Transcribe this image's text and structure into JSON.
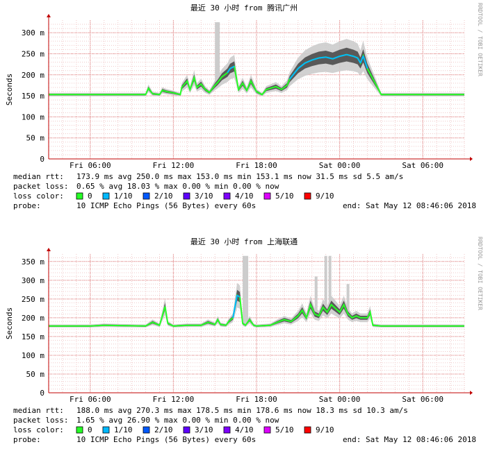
{
  "colors": {
    "grid_major": "#e08080",
    "grid_minor": "#f0c8c8",
    "axis": "#c00000",
    "smoke_light": "#cccccc",
    "smoke_dark": "#444444",
    "loss_0": "#26ff26",
    "loss_1": "#00b8ff",
    "loss_2": "#0059ff",
    "loss_3": "#5e00ff",
    "loss_4": "#7e00ff",
    "loss_5": "#dd00ff",
    "loss_9": "#ff0000"
  },
  "vertical_label": "RRDTOOL / TOBI OETIKER",
  "legend": {
    "loss_color_label": "loss color:",
    "probe_label": "probe:",
    "probe_text": "10 ICMP Echo Pings (56 Bytes) every 60s",
    "end_text": "end: Sat May 12 08:46:06 2018",
    "loss_items": [
      {
        "label": "0",
        "color": "#26ff26"
      },
      {
        "label": "1/10",
        "color": "#00b8ff"
      },
      {
        "label": "2/10",
        "color": "#0059ff"
      },
      {
        "label": "3/10",
        "color": "#5e00ff"
      },
      {
        "label": "4/10",
        "color": "#7e00ff"
      },
      {
        "label": "5/10",
        "color": "#dd00ff"
      },
      {
        "label": "9/10",
        "color": "#ff0000"
      }
    ]
  },
  "chart_data": [
    {
      "type": "line",
      "title": "最近 30 小时 from 腾讯广州",
      "ylabel": "Seconds",
      "xlabel": "",
      "ylim": [
        0,
        0.33
      ],
      "y_ticks": [
        0,
        0.05,
        0.1,
        0.15,
        0.2,
        0.25,
        0.3
      ],
      "y_tick_labels": [
        "0",
        "50 m",
        "100 m",
        "150 m",
        "200 m",
        "250 m",
        "300 m"
      ],
      "x_range_hours": [
        0,
        30
      ],
      "x_ticks_hours": [
        3,
        9,
        15,
        21,
        27
      ],
      "x_tick_labels": [
        "Fri 06:00",
        "Fri 12:00",
        "Fri 18:00",
        "Sat 00:00",
        "Sat 06:00"
      ],
      "grid": true,
      "series": [
        {
          "x": [
            0,
            3,
            6,
            7,
            7.2,
            7.5,
            8,
            8.2,
            8.5,
            9,
            9.5,
            9.6,
            10,
            10.2,
            10.5,
            10.7,
            11,
            11.3,
            11.6,
            12,
            12.2,
            12.5,
            12.9,
            13.1,
            13.4,
            13.7,
            14,
            14.3,
            14.6,
            15,
            15.4,
            15.7,
            16,
            16.4,
            16.8,
            17.2,
            17.4,
            18,
            18.5,
            19,
            19.5,
            20,
            20.5,
            21,
            21.5,
            22,
            22.3,
            22.5,
            22.7,
            23,
            24,
            27,
            30
          ],
          "y": [
            0.153,
            0.153,
            0.153,
            0.153,
            0.168,
            0.155,
            0.153,
            0.163,
            0.16,
            0.157,
            0.153,
            0.17,
            0.185,
            0.165,
            0.193,
            0.17,
            0.178,
            0.165,
            0.158,
            0.175,
            0.182,
            0.195,
            0.205,
            0.215,
            0.22,
            0.165,
            0.18,
            0.163,
            0.185,
            0.16,
            0.153,
            0.165,
            0.168,
            0.172,
            0.165,
            0.175,
            0.19,
            0.215,
            0.228,
            0.235,
            0.24,
            0.242,
            0.238,
            0.244,
            0.248,
            0.244,
            0.24,
            0.228,
            0.245,
            0.215,
            0.153,
            0.153,
            0.153
          ]
        }
      ],
      "spikes": [
        {
          "x": 12.1,
          "y": 0.325
        },
        {
          "x": 12.25,
          "y": 0.325
        }
      ],
      "stats": {
        "rtt_label": "median rtt:",
        "rtt_text": "173.9 ms avg   250.0 ms max   153.0 ms min   153.1 ms now   31.5 ms sd   5.5    am/s",
        "loss_label": "packet loss:",
        "loss_text": "0.65 % avg   18.03 % max   0.00 % min   0.00 % now"
      }
    },
    {
      "type": "line",
      "title": "最近 30 小时 from 上海联通",
      "ylabel": "Seconds",
      "xlabel": "",
      "ylim": [
        0,
        0.37
      ],
      "y_ticks": [
        0,
        0.05,
        0.1,
        0.15,
        0.2,
        0.25,
        0.3,
        0.35
      ],
      "y_tick_labels": [
        "0",
        "50 m",
        "100 m",
        "150 m",
        "200 m",
        "250 m",
        "300 m",
        "350 m"
      ],
      "x_range_hours": [
        0,
        30
      ],
      "x_ticks_hours": [
        3,
        9,
        15,
        21,
        27
      ],
      "x_tick_labels": [
        "Fri 06:00",
        "Fri 12:00",
        "Fri 18:00",
        "Sat 00:00",
        "Sat 06:00"
      ],
      "grid": true,
      "series": [
        {
          "x": [
            0,
            3,
            4,
            7,
            7.5,
            8,
            8.2,
            8.4,
            8.6,
            9,
            10,
            11,
            11.5,
            12,
            12.2,
            12.4,
            12.8,
            13,
            13.3,
            13.6,
            13.8,
            14,
            14.2,
            14.5,
            14.8,
            15,
            16,
            16.5,
            17,
            17.5,
            18,
            18.3,
            18.6,
            18.9,
            19.2,
            19.5,
            19.8,
            20.1,
            20.4,
            20.7,
            21,
            21.3,
            21.6,
            21.9,
            22.2,
            22.5,
            23,
            23.2,
            23.4,
            24,
            27,
            30
          ],
          "y": [
            0.178,
            0.178,
            0.18,
            0.178,
            0.188,
            0.18,
            0.205,
            0.23,
            0.185,
            0.178,
            0.18,
            0.18,
            0.188,
            0.182,
            0.195,
            0.182,
            0.18,
            0.19,
            0.2,
            0.26,
            0.255,
            0.185,
            0.18,
            0.195,
            0.18,
            0.178,
            0.18,
            0.188,
            0.195,
            0.19,
            0.205,
            0.22,
            0.2,
            0.235,
            0.21,
            0.205,
            0.228,
            0.215,
            0.235,
            0.225,
            0.215,
            0.235,
            0.21,
            0.2,
            0.205,
            0.2,
            0.2,
            0.215,
            0.18,
            0.178,
            0.178,
            0.178
          ]
        }
      ],
      "spikes": [
        {
          "x": 14.1,
          "y": 0.365
        },
        {
          "x": 14.3,
          "y": 0.365
        },
        {
          "x": 20.0,
          "y": 0.365
        },
        {
          "x": 20.3,
          "y": 0.365
        },
        {
          "x": 19.3,
          "y": 0.31
        },
        {
          "x": 21.6,
          "y": 0.29
        }
      ],
      "stats": {
        "rtt_label": "median rtt:",
        "rtt_text": "188.0 ms avg   270.3 ms max   178.5 ms min   178.6 ms now   18.3 ms sd   10.3    am/s",
        "loss_label": "packet loss:",
        "loss_text": "1.65 % avg   26.90 % max   0.00 % min   0.00 % now"
      }
    }
  ]
}
